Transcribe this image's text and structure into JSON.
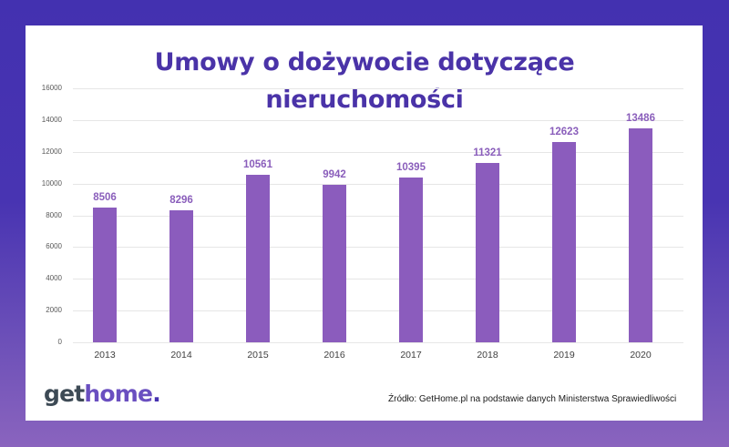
{
  "title": {
    "line1": "Umowy o dożywocie dotyczące",
    "line2": "nieruchomości"
  },
  "colors": {
    "background_top": "#4331b0",
    "background_bottom": "#8a64be",
    "bar": "#8b5cbd",
    "title": "#4a33a8",
    "bar_label": "#8a5ebb"
  },
  "chart_data": {
    "type": "bar",
    "title": "Umowy o dożywocie dotyczące nieruchomości",
    "xlabel": "",
    "ylabel": "",
    "categories": [
      "2013",
      "2014",
      "2015",
      "2016",
      "2017",
      "2018",
      "2019",
      "2020"
    ],
    "values": [
      8506,
      8296,
      10561,
      9942,
      10395,
      11321,
      12623,
      13486
    ],
    "value_labels": [
      "8506",
      "8296",
      "10561",
      "9942",
      "10395",
      "11321",
      "12623",
      "13486"
    ],
    "ylim": [
      0,
      16000
    ],
    "yticks": [
      "0",
      "2000",
      "4000",
      "6000",
      "8000",
      "10000",
      "12000",
      "14000",
      "16000"
    ],
    "grid": true,
    "legend": "none"
  },
  "footer": {
    "logo": {
      "part1": "get",
      "part2": "home",
      "part3": "."
    },
    "source": "Źródło: GetHome.pl na podstawie danych Ministerstwa Sprawiedliwości"
  }
}
